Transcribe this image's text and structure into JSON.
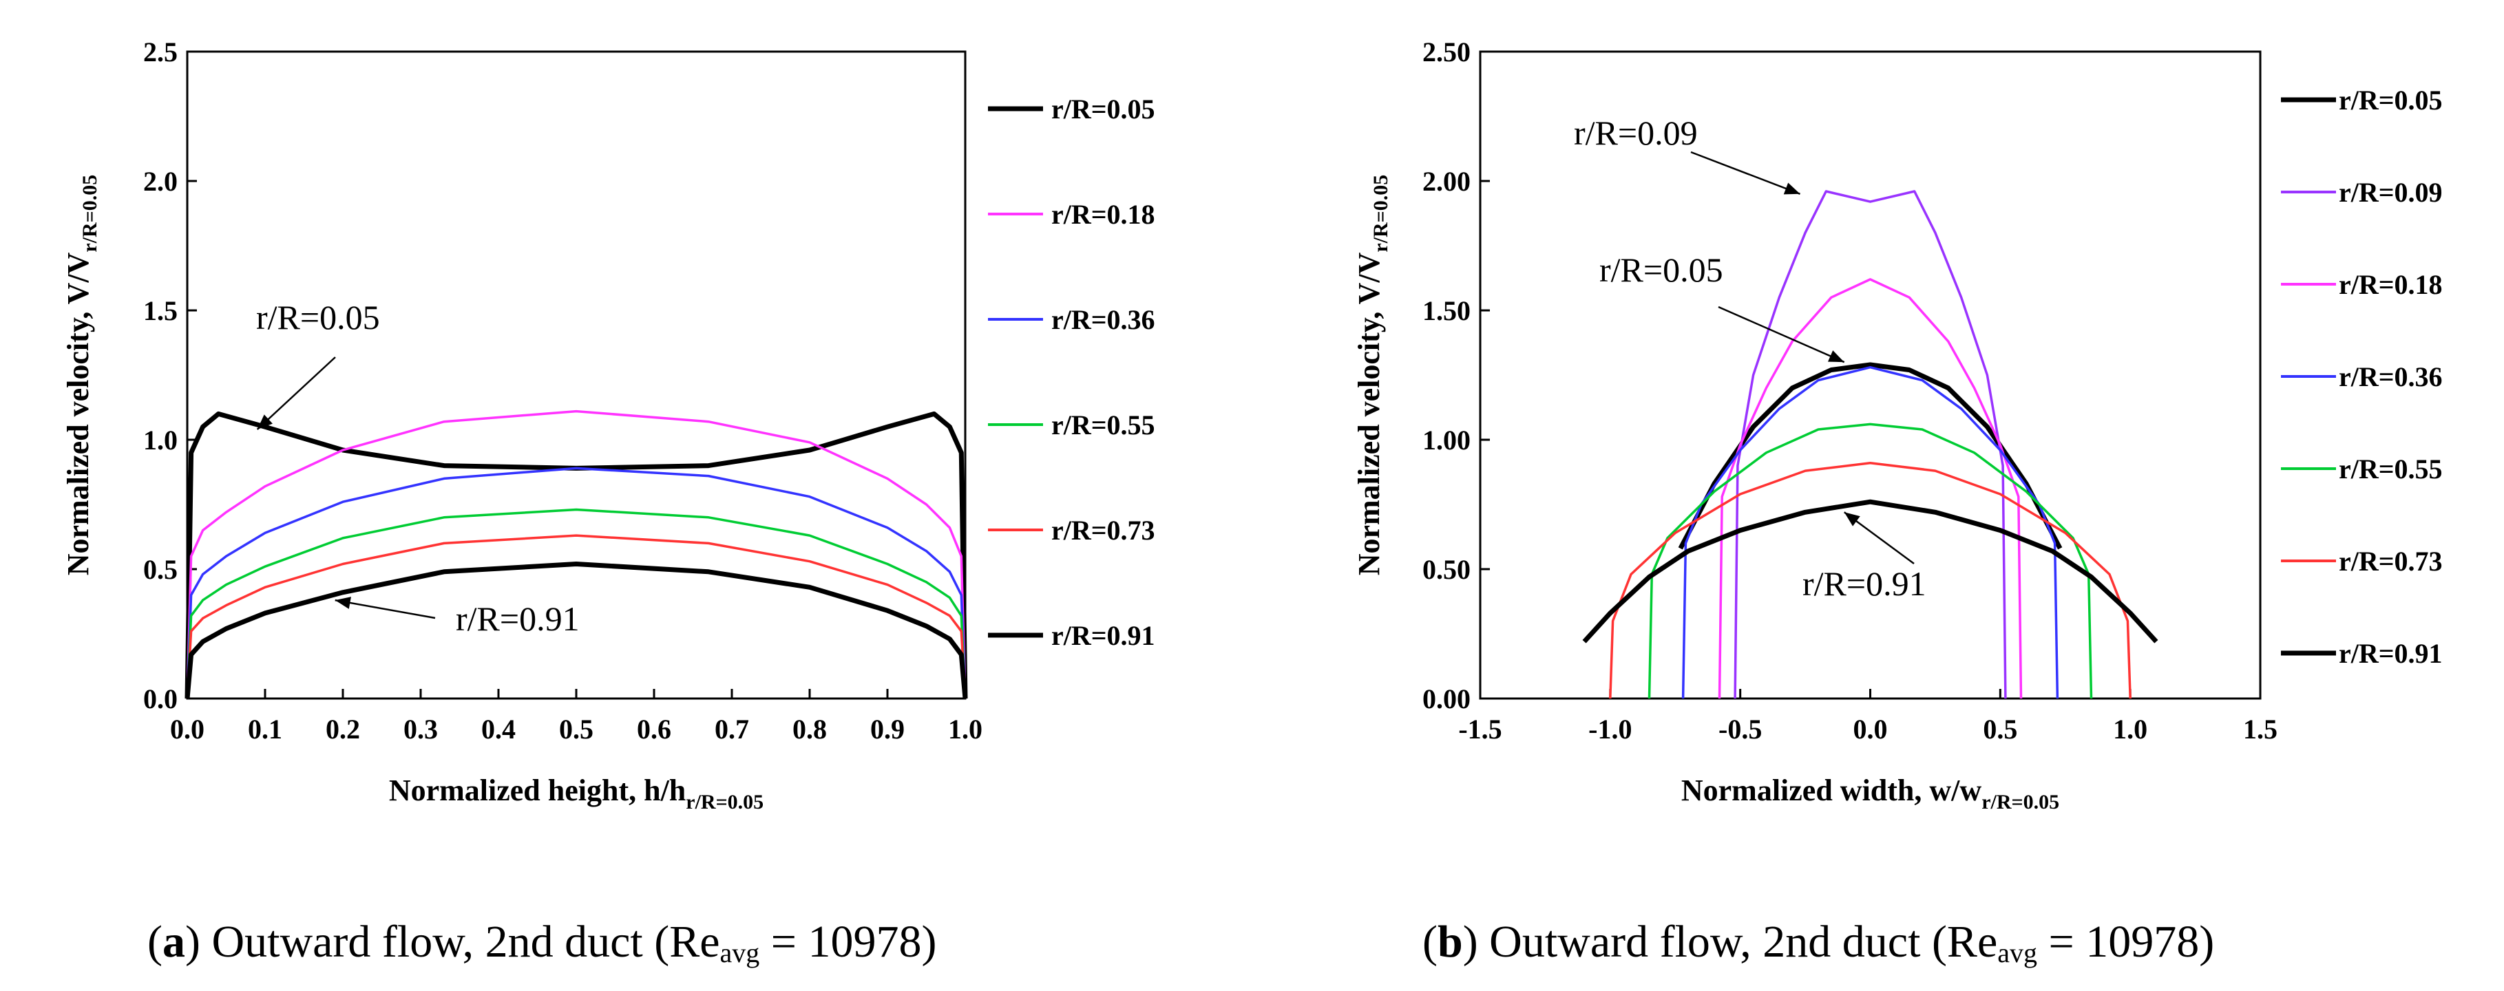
{
  "chart_data": [
    {
      "type": "line",
      "panel": "a",
      "xlabel": "Normalized height,  h/h",
      "xlabel_sub": "r/R=0.05",
      "ylabel": "Normalized velocity,  V/V",
      "ylabel_sub": "r/R=0.05",
      "xlim": [
        0,
        1
      ],
      "ylim": [
        0,
        2.5
      ],
      "xticks": [
        "0.0",
        "0.1",
        "0.2",
        "0.3",
        "0.4",
        "0.5",
        "0.6",
        "0.7",
        "0.8",
        "0.9",
        "1.0"
      ],
      "yticks": [
        "0.0",
        "0.5",
        "1.0",
        "1.5",
        "2.0",
        "2.5"
      ],
      "grid": false,
      "legend_position": "right",
      "caption_bold": "a",
      "caption_pre": "(",
      "caption_main": ") Outward flow, 2nd duct (Re",
      "caption_sub": "avg",
      "caption_end": " = 10978)",
      "annotations": [
        {
          "text": "r/R=0.05",
          "target": [
            0.09,
            1.04
          ]
        },
        {
          "text": "r/R=0.91",
          "target": [
            0.19,
            0.38
          ]
        }
      ],
      "series": [
        {
          "name": "r/R=0.05",
          "color": "#000000",
          "x": [
            0,
            0.005,
            0.02,
            0.04,
            0.1,
            0.2,
            0.33,
            0.5,
            0.67,
            0.8,
            0.9,
            0.96,
            0.98,
            0.995,
            1.0
          ],
          "y": [
            0,
            0.95,
            1.05,
            1.1,
            1.05,
            0.96,
            0.9,
            0.89,
            0.9,
            0.96,
            1.05,
            1.1,
            1.05,
            0.95,
            0
          ]
        },
        {
          "name": "r/R=0.18",
          "color": "#ff33ff",
          "x": [
            0,
            0.005,
            0.02,
            0.05,
            0.1,
            0.2,
            0.33,
            0.5,
            0.67,
            0.8,
            0.9,
            0.95,
            0.98,
            0.995,
            1.0
          ],
          "y": [
            0,
            0.55,
            0.65,
            0.72,
            0.82,
            0.96,
            1.07,
            1.11,
            1.07,
            0.99,
            0.85,
            0.75,
            0.66,
            0.55,
            0
          ]
        },
        {
          "name": "r/R=0.36",
          "color": "#3333ff",
          "x": [
            0,
            0.005,
            0.02,
            0.05,
            0.1,
            0.2,
            0.33,
            0.5,
            0.67,
            0.8,
            0.9,
            0.95,
            0.98,
            0.995,
            1.0
          ],
          "y": [
            0,
            0.4,
            0.48,
            0.55,
            0.64,
            0.76,
            0.85,
            0.89,
            0.86,
            0.78,
            0.66,
            0.57,
            0.49,
            0.4,
            0
          ]
        },
        {
          "name": "r/R=0.55",
          "color": "#00cc33",
          "x": [
            0,
            0.005,
            0.02,
            0.05,
            0.1,
            0.2,
            0.33,
            0.5,
            0.67,
            0.8,
            0.9,
            0.95,
            0.98,
            0.995,
            1.0
          ],
          "y": [
            0,
            0.32,
            0.38,
            0.44,
            0.51,
            0.62,
            0.7,
            0.73,
            0.7,
            0.63,
            0.52,
            0.45,
            0.39,
            0.32,
            0
          ]
        },
        {
          "name": "r/R=0.73",
          "color": "#ff3333",
          "x": [
            0,
            0.005,
            0.02,
            0.05,
            0.1,
            0.2,
            0.33,
            0.5,
            0.67,
            0.8,
            0.9,
            0.95,
            0.98,
            0.995,
            1.0
          ],
          "y": [
            0,
            0.26,
            0.31,
            0.36,
            0.43,
            0.52,
            0.6,
            0.63,
            0.6,
            0.53,
            0.44,
            0.37,
            0.32,
            0.26,
            0
          ]
        },
        {
          "name": "r/R=0.91",
          "color": "#000000",
          "x": [
            0,
            0.005,
            0.02,
            0.05,
            0.1,
            0.2,
            0.33,
            0.5,
            0.67,
            0.8,
            0.9,
            0.95,
            0.98,
            0.995,
            1.0
          ],
          "y": [
            0,
            0.17,
            0.22,
            0.27,
            0.33,
            0.41,
            0.49,
            0.52,
            0.49,
            0.43,
            0.34,
            0.28,
            0.23,
            0.17,
            0
          ]
        }
      ]
    },
    {
      "type": "line",
      "panel": "b",
      "xlabel": "Normalized width,  w/w",
      "xlabel_sub": "r/R=0.05",
      "ylabel": "Normalized velocity,  V/V",
      "ylabel_sub": "r/R=0.05",
      "xlim": [
        -1.5,
        1.5
      ],
      "ylim": [
        0,
        2.5
      ],
      "xticks": [
        "-1.5",
        "-1.0",
        "-0.5",
        "0.0",
        "0.5",
        "1.0",
        "1.5"
      ],
      "yticks": [
        "0.00",
        "0.50",
        "1.00",
        "1.50",
        "2.00",
        "2.50"
      ],
      "grid": false,
      "legend_position": "right",
      "caption_bold": "b",
      "caption_pre": "(",
      "caption_main": ") Outward flow, 2nd duct (Re",
      "caption_sub": "avg",
      "caption_end": " = 10978)",
      "annotations": [
        {
          "text": "r/R=0.09",
          "target": [
            -0.27,
            1.95
          ]
        },
        {
          "text": "r/R=0.05",
          "target": [
            -0.1,
            1.3
          ]
        },
        {
          "text": "r/R=0.91",
          "target": [
            -0.1,
            0.72
          ]
        }
      ],
      "series": [
        {
          "name": "r/R=0.05",
          "color": "#000000",
          "x": [
            -0.73,
            -0.6,
            -0.45,
            -0.3,
            -0.15,
            0,
            0.15,
            0.3,
            0.45,
            0.6,
            0.73
          ],
          "y": [
            0.58,
            0.83,
            1.05,
            1.2,
            1.27,
            1.29,
            1.27,
            1.2,
            1.05,
            0.83,
            0.58
          ]
        },
        {
          "name": "r/R=0.09",
          "color": "#9933ff",
          "x": [
            -0.52,
            -0.51,
            -0.45,
            -0.35,
            -0.25,
            -0.17,
            0,
            0.17,
            0.25,
            0.35,
            0.45,
            0.51,
            0.52
          ],
          "y": [
            0,
            0.9,
            1.25,
            1.55,
            1.8,
            1.96,
            1.92,
            1.96,
            1.8,
            1.55,
            1.25,
            0.9,
            0
          ]
        },
        {
          "name": "r/R=0.18",
          "color": "#ff33ff",
          "x": [
            -0.58,
            -0.57,
            -0.5,
            -0.4,
            -0.3,
            -0.15,
            0,
            0.15,
            0.3,
            0.4,
            0.5,
            0.57,
            0.58
          ],
          "y": [
            0,
            0.78,
            0.98,
            1.2,
            1.38,
            1.55,
            1.62,
            1.55,
            1.38,
            1.2,
            0.98,
            0.78,
            0
          ]
        },
        {
          "name": "r/R=0.36",
          "color": "#3333ff",
          "x": [
            -0.72,
            -0.71,
            -0.65,
            -0.5,
            -0.35,
            -0.2,
            0,
            0.2,
            0.35,
            0.5,
            0.65,
            0.71,
            0.72
          ],
          "y": [
            0,
            0.6,
            0.75,
            0.96,
            1.12,
            1.23,
            1.28,
            1.23,
            1.12,
            0.96,
            0.75,
            0.6,
            0
          ]
        },
        {
          "name": "r/R=0.55",
          "color": "#00cc33",
          "x": [
            -0.85,
            -0.84,
            -0.78,
            -0.6,
            -0.4,
            -0.2,
            0,
            0.2,
            0.4,
            0.6,
            0.78,
            0.84,
            0.85
          ],
          "y": [
            0,
            0.48,
            0.62,
            0.8,
            0.95,
            1.04,
            1.06,
            1.04,
            0.95,
            0.8,
            0.62,
            0.48,
            0
          ]
        },
        {
          "name": "r/R=0.73",
          "color": "#ff3333",
          "x": [
            -1.0,
            -0.99,
            -0.92,
            -0.75,
            -0.5,
            -0.25,
            0,
            0.25,
            0.5,
            0.75,
            0.92,
            0.99,
            1.0
          ],
          "y": [
            0,
            0.3,
            0.48,
            0.64,
            0.79,
            0.88,
            0.91,
            0.88,
            0.79,
            0.64,
            0.48,
            0.3,
            0
          ]
        },
        {
          "name": "r/R=0.91",
          "color": "#000000",
          "x": [
            -1.1,
            -1.0,
            -0.85,
            -0.7,
            -0.5,
            -0.25,
            0,
            0.25,
            0.5,
            0.7,
            0.85,
            1.0,
            1.1
          ],
          "y": [
            0.22,
            0.33,
            0.47,
            0.57,
            0.65,
            0.72,
            0.76,
            0.72,
            0.65,
            0.57,
            0.47,
            0.33,
            0.22
          ]
        }
      ]
    }
  ]
}
